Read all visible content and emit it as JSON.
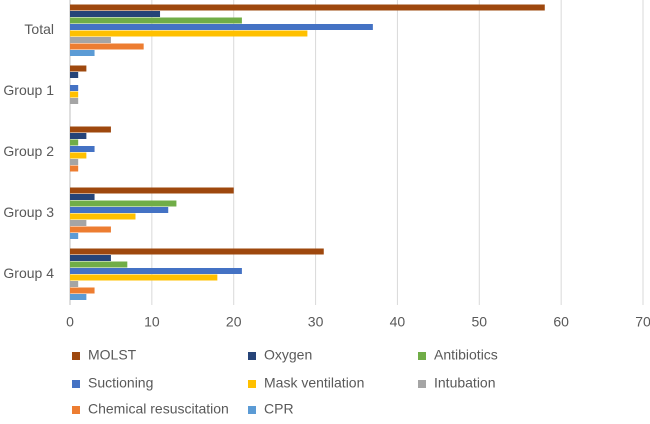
{
  "chart_data": {
    "type": "hbar",
    "categories": [
      "Total",
      "Group 1",
      "Group 2",
      "Group 3",
      "Group 4"
    ],
    "series": [
      {
        "name": "MOLST",
        "color": "#9e480e",
        "values": [
          58,
          2,
          5,
          20,
          31
        ]
      },
      {
        "name": "Oxygen",
        "color": "#264478",
        "values": [
          11,
          1,
          2,
          3,
          5
        ]
      },
      {
        "name": "Antibiotics",
        "color": "#70ad47",
        "values": [
          21,
          0,
          1,
          13,
          7
        ]
      },
      {
        "name": "Suctioning",
        "color": "#4472c4",
        "values": [
          37,
          1,
          3,
          12,
          21
        ]
      },
      {
        "name": "Mask ventilation",
        "color": "#ffc000",
        "values": [
          29,
          1,
          2,
          8,
          18
        ]
      },
      {
        "name": "Intubation",
        "color": "#a5a5a5",
        "values": [
          5,
          1,
          1,
          2,
          1
        ]
      },
      {
        "name": "Chemical resuscitation",
        "color": "#ed7d31",
        "values": [
          9,
          0,
          1,
          5,
          3
        ]
      },
      {
        "name": "CPR",
        "color": "#5b9bd5",
        "values": [
          3,
          0,
          0,
          1,
          2
        ]
      }
    ],
    "xlim": [
      0,
      70
    ],
    "xticks": [
      0,
      10,
      20,
      30,
      40,
      50,
      60,
      70
    ],
    "grid": true,
    "legend": "bottom"
  }
}
